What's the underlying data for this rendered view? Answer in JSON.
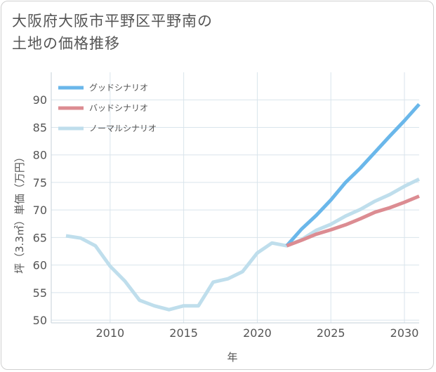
{
  "title": {
    "line1": "大阪府大阪市平野区平野南の",
    "line2": "土地の価格推移"
  },
  "chart_data": {
    "type": "line",
    "title": "大阪府大阪市平野区平野南の土地の価格推移",
    "xlabel": "年",
    "ylabel": "坪（3.3㎡）単価（万円）",
    "xlim": [
      2006,
      2031
    ],
    "ylim": [
      49.5,
      95
    ],
    "xticks": [
      2010,
      2015,
      2020,
      2025,
      2030
    ],
    "yticks": [
      50,
      55,
      60,
      65,
      70,
      75,
      80,
      85,
      90
    ],
    "grid": true,
    "legend_position": "top-left",
    "series": [
      {
        "name": "グッドシナリオ",
        "color": "#6ab7ea",
        "points": [
          [
            2022,
            63.5
          ],
          [
            2023,
            66.5
          ],
          [
            2024,
            69.0
          ],
          [
            2025,
            71.8
          ],
          [
            2026,
            75.0
          ],
          [
            2027,
            77.6
          ],
          [
            2028,
            80.5
          ],
          [
            2029,
            83.4
          ],
          [
            2030,
            86.2
          ],
          [
            2031,
            89.2
          ]
        ]
      },
      {
        "name": "バッドシナリオ",
        "color": "#dc8c92",
        "points": [
          [
            2022,
            63.5
          ],
          [
            2023,
            64.5
          ],
          [
            2024,
            65.6
          ],
          [
            2025,
            66.4
          ],
          [
            2026,
            67.3
          ],
          [
            2027,
            68.4
          ],
          [
            2028,
            69.6
          ],
          [
            2029,
            70.4
          ],
          [
            2030,
            71.4
          ],
          [
            2031,
            72.5
          ]
        ]
      },
      {
        "name": "ノーマルシナリオ",
        "color": "#bfdeec",
        "points": [
          [
            2007,
            65.3
          ],
          [
            2008,
            64.9
          ],
          [
            2009,
            63.5
          ],
          [
            2010,
            59.8
          ],
          [
            2011,
            57.1
          ],
          [
            2012,
            53.6
          ],
          [
            2013,
            52.6
          ],
          [
            2014,
            51.9
          ],
          [
            2015,
            52.6
          ],
          [
            2016,
            52.6
          ],
          [
            2017,
            56.9
          ],
          [
            2018,
            57.5
          ],
          [
            2019,
            58.8
          ],
          [
            2020,
            62.2
          ],
          [
            2021,
            64.0
          ],
          [
            2022,
            63.5
          ],
          [
            2023,
            64.6
          ],
          [
            2024,
            66.3
          ],
          [
            2025,
            67.4
          ],
          [
            2026,
            68.9
          ],
          [
            2027,
            70.1
          ],
          [
            2028,
            71.6
          ],
          [
            2029,
            72.8
          ],
          [
            2030,
            74.3
          ],
          [
            2031,
            75.6
          ]
        ]
      }
    ]
  }
}
